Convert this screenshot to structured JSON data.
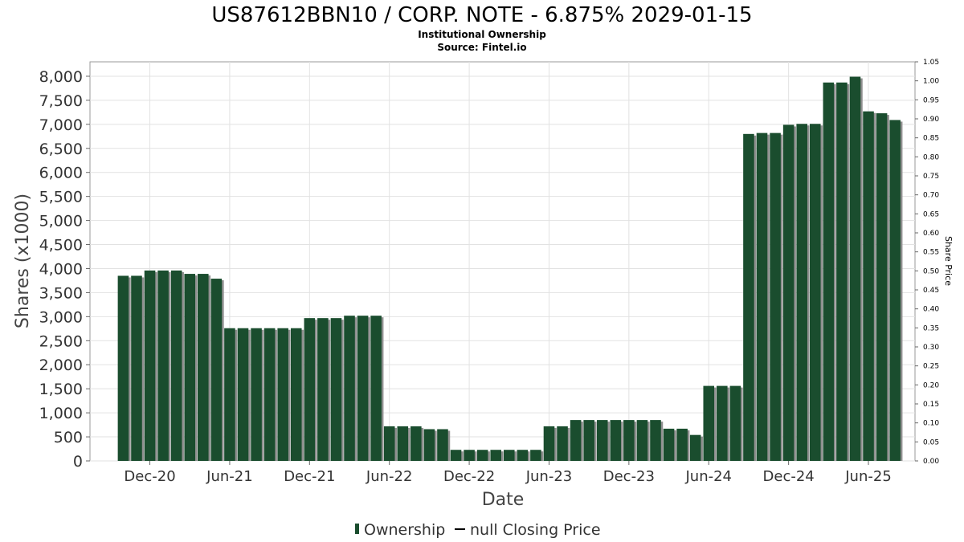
{
  "chart_data": {
    "type": "bar",
    "title": "US87612BBN10 / CORP. NOTE - 6.875% 2029-01-15",
    "subtitle": "Institutional Ownership",
    "source": "Source: Fintel.io",
    "xlabel": "Date",
    "ylabel": "Shares (x1000)",
    "y2label": "Share Price",
    "ylim": [
      0,
      8300
    ],
    "y2lim": [
      0,
      1.05
    ],
    "yticks": [
      "0",
      "500",
      "1,000",
      "1,500",
      "2,000",
      "2,500",
      "3,000",
      "3,500",
      "4,000",
      "4,500",
      "5,000",
      "5,500",
      "6,000",
      "6,500",
      "7,000",
      "7,500",
      "8,000"
    ],
    "yticks_values": [
      0,
      500,
      1000,
      1500,
      2000,
      2500,
      3000,
      3500,
      4000,
      4500,
      5000,
      5500,
      6000,
      6500,
      7000,
      7500,
      8000
    ],
    "y2ticks": [
      "0.00",
      "0.05",
      "0.10",
      "0.15",
      "0.20",
      "0.25",
      "0.30",
      "0.35",
      "0.40",
      "0.45",
      "0.50",
      "0.55",
      "0.60",
      "0.65",
      "0.70",
      "0.75",
      "0.80",
      "0.85",
      "0.90",
      "0.95",
      "1.00",
      "1.05"
    ],
    "x_start": "2020-08",
    "x_end": "2025-10",
    "xticks": [
      {
        "date": "2020-12",
        "label": "Dec-20"
      },
      {
        "date": "2021-06",
        "label": "Jun-21"
      },
      {
        "date": "2021-12",
        "label": "Dec-21"
      },
      {
        "date": "2022-06",
        "label": "Jun-22"
      },
      {
        "date": "2022-12",
        "label": "Dec-22"
      },
      {
        "date": "2023-06",
        "label": "Jun-23"
      },
      {
        "date": "2023-12",
        "label": "Dec-23"
      },
      {
        "date": "2024-06",
        "label": "Jun-24"
      },
      {
        "date": "2024-12",
        "label": "Dec-24"
      },
      {
        "date": "2025-06",
        "label": "Jun-25"
      }
    ],
    "x": [
      "2020-10",
      "2020-11",
      "2020-12",
      "2021-01",
      "2021-02",
      "2021-03",
      "2021-04",
      "2021-05",
      "2021-06",
      "2021-07",
      "2021-08",
      "2021-09",
      "2021-10",
      "2021-11",
      "2021-12",
      "2022-01",
      "2022-02",
      "2022-03",
      "2022-04",
      "2022-05",
      "2022-06",
      "2022-07",
      "2022-08",
      "2022-09",
      "2022-10",
      "2022-11",
      "2022-12",
      "2023-01",
      "2023-02",
      "2023-03",
      "2023-04",
      "2023-05",
      "2023-06",
      "2023-07",
      "2023-08",
      "2023-09",
      "2023-10",
      "2023-11",
      "2023-12",
      "2024-01",
      "2024-02",
      "2024-03",
      "2024-04",
      "2024-05",
      "2024-06",
      "2024-07",
      "2024-08",
      "2024-09",
      "2024-10",
      "2024-11",
      "2024-12",
      "2025-01",
      "2025-02",
      "2025-03",
      "2025-04",
      "2025-05",
      "2025-06",
      "2025-07",
      "2025-08"
    ],
    "series": [
      {
        "name": "Ownership",
        "color": "#1a4d2e",
        "values": [
          3850,
          3850,
          3960,
          3960,
          3960,
          3890,
          3890,
          3790,
          2760,
          2760,
          2760,
          2760,
          2760,
          2760,
          2970,
          2970,
          2970,
          3020,
          3020,
          3020,
          720,
          720,
          720,
          660,
          660,
          230,
          230,
          230,
          230,
          230,
          230,
          230,
          720,
          720,
          850,
          850,
          850,
          850,
          850,
          850,
          850,
          670,
          670,
          540,
          1560,
          1560,
          1560,
          6800,
          6820,
          6820,
          6990,
          7010,
          7010,
          7870,
          7870,
          7990,
          7270,
          7230,
          7090
        ]
      }
    ],
    "legend": [
      {
        "label": "Ownership",
        "marker": "bar",
        "color": "#1a4d2e"
      },
      {
        "label": "null Closing Price",
        "marker": "line",
        "color": "#000000"
      }
    ],
    "legend_position": "bottom",
    "grid": true
  }
}
